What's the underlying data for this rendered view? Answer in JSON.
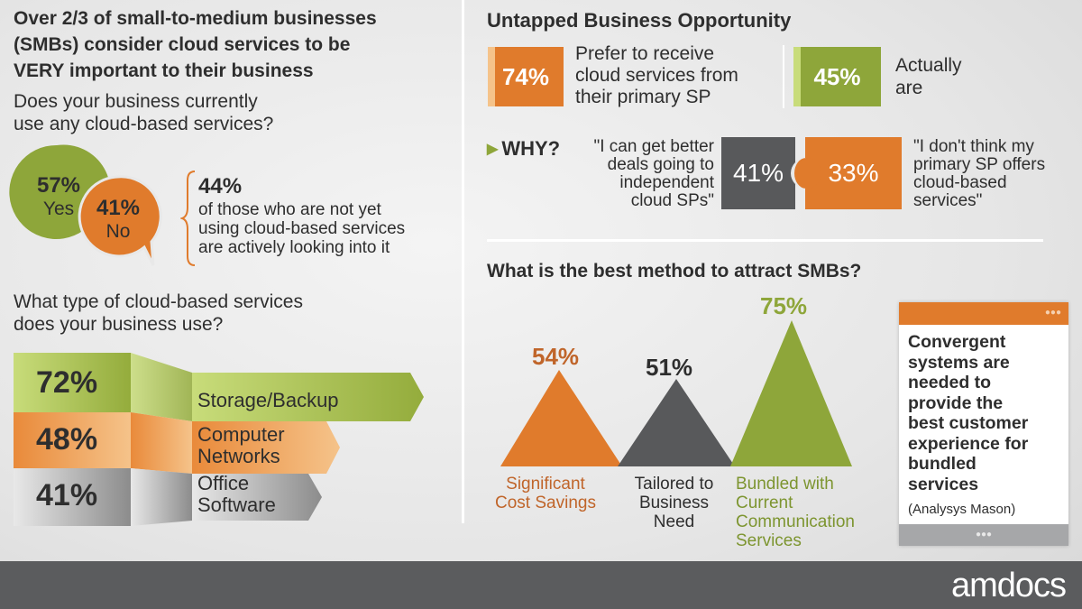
{
  "left": {
    "title": [
      "Over 2/3 of small-to-medium businesses",
      "(SMBs) consider cloud services to be",
      "VERY important to their business"
    ],
    "question1": [
      "Does your business currently",
      "use any cloud-based services?"
    ],
    "yes": {
      "value": "57%",
      "label": "Yes"
    },
    "no": {
      "value": "41%",
      "label": "No"
    },
    "looking": {
      "value": "44%",
      "text": [
        "of those who are not yet",
        "using cloud-based services",
        "are actively looking into it"
      ]
    },
    "question2": [
      "What type of cloud-based services",
      "does your business use?"
    ],
    "services": [
      {
        "value": "72%",
        "label": [
          "Storage/Backup"
        ]
      },
      {
        "value": "48%",
        "label": [
          "Computer",
          "Networks"
        ]
      },
      {
        "value": "41%",
        "label": [
          "Office",
          "Software"
        ]
      }
    ]
  },
  "right": {
    "title": "Untapped Business Opportunity",
    "prefer": {
      "value": "74%",
      "text": [
        "Prefer to receive",
        "cloud services from",
        "their primary SP"
      ]
    },
    "actual": {
      "value": "45%",
      "text": [
        "Actually",
        "are"
      ]
    },
    "why": {
      "label": "WHY?",
      "left_value": "41%",
      "left_quote": [
        "\"I can get better",
        "deals going to",
        "independent",
        "cloud SPs\""
      ],
      "right_value": "33%",
      "right_quote": [
        "\"I don't think my",
        "primary SP offers",
        "cloud-based",
        "services\""
      ]
    },
    "method_title": "What is the best method to attract SMBs?",
    "methods": [
      {
        "value": "54%",
        "label": [
          "Significant",
          "Cost Savings"
        ],
        "color": "#e07b2c"
      },
      {
        "value": "51%",
        "label": [
          "Tailored to",
          "Business",
          "Need"
        ],
        "color": "#58595b"
      },
      {
        "value": "75%",
        "label": [
          "Bundled with",
          "Current",
          "Communication",
          "Services"
        ],
        "color": "#8ea63a"
      }
    ],
    "card": {
      "text": [
        "Convergent",
        "systems are",
        "needed to",
        "provide the",
        "best customer",
        "experience for",
        "bundled",
        "services"
      ],
      "source": "(Analysys Mason)",
      "dots": "●●●"
    }
  },
  "colors": {
    "green": "#8ea63a",
    "orange": "#e07b2c",
    "gray": "#58595b"
  },
  "footer": {
    "logo": "amdocs"
  }
}
